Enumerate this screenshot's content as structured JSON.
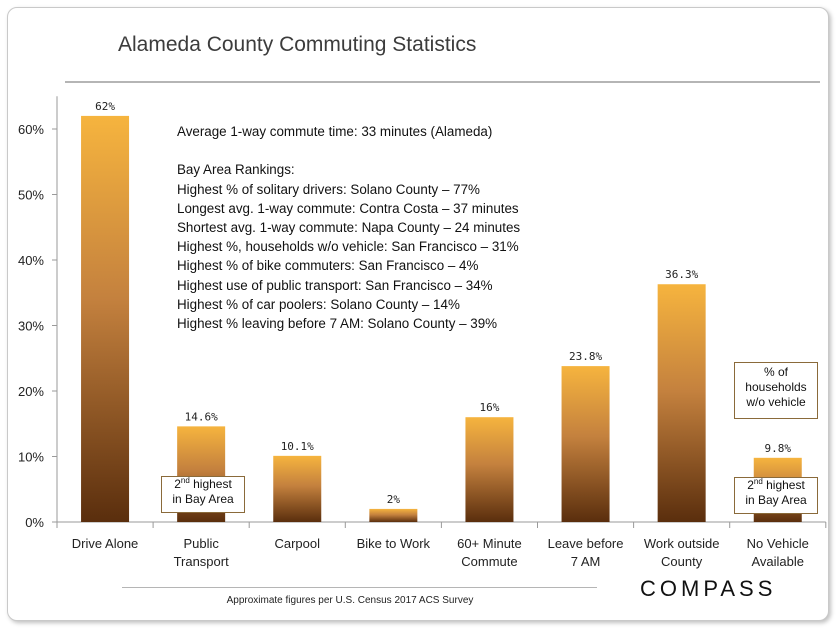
{
  "title": "Alameda County Commuting Statistics",
  "chart_data": {
    "type": "bar",
    "categories": [
      "Drive Alone",
      "Public Transport",
      "Carpool",
      "Bike to Work",
      "60+ Minute Commute",
      "Leave before 7 AM",
      "Work outside County",
      "No Vehicle Available"
    ],
    "category_lines": [
      [
        "Drive Alone"
      ],
      [
        "Public",
        "Transport"
      ],
      [
        "Carpool"
      ],
      [
        "Bike to Work"
      ],
      [
        "60+ Minute",
        "Commute"
      ],
      [
        "Leave before",
        "7 AM"
      ],
      [
        "Work outside",
        "County"
      ],
      [
        "No Vehicle",
        "Available"
      ]
    ],
    "values": [
      62,
      14.6,
      10.1,
      2,
      16,
      23.8,
      36.3,
      9.8
    ],
    "value_labels": [
      "62%",
      "14.6%",
      "10.1%",
      "2%",
      "16%",
      "23.8%",
      "36.3%",
      "9.8%"
    ],
    "ylim": [
      0,
      65
    ],
    "yticks": [
      0,
      10,
      20,
      30,
      40,
      50,
      60
    ],
    "ytick_labels": [
      "0%",
      "10%",
      "20%",
      "30%",
      "40%",
      "50%",
      "60%"
    ],
    "grid": false,
    "bar_color_top": "#f6b43e",
    "bar_color_bottom": "#5a2e0d"
  },
  "notes": [
    "Average 1-way commute time: 33 minutes (Alameda)",
    "",
    "Bay Area Rankings:",
    "Highest % of solitary drivers: Solano County – 77%",
    "Longest avg. 1-way commute: Contra Costa – 37 minutes",
    "Shortest avg. 1-way commute: Napa County – 24 minutes",
    "Highest %, households w/o vehicle: San Francisco – 31%",
    "Highest % of bike commuters: San Francisco – 4%",
    "Highest use of public transport: San Francisco – 34%",
    "Highest % of car poolers: Solano County – 14%",
    "Highest % leaving before 7 AM: Solano County – 39%"
  ],
  "callouts": {
    "public_transport": {
      "prefix": "2",
      "sup": "nd",
      "line1_rest": " highest",
      "line2": "in Bay Area"
    },
    "no_vehicle_top": {
      "line1": "% of",
      "line2": "households",
      "line3": "w/o vehicle"
    },
    "no_vehicle_bottom": {
      "prefix": "2",
      "sup": "nd",
      "line1_rest": " highest",
      "line2": "in Bay Area"
    }
  },
  "footnote": "Approximate figures per U.S. Census 2017 ACS Survey",
  "logo": "COMPASS"
}
